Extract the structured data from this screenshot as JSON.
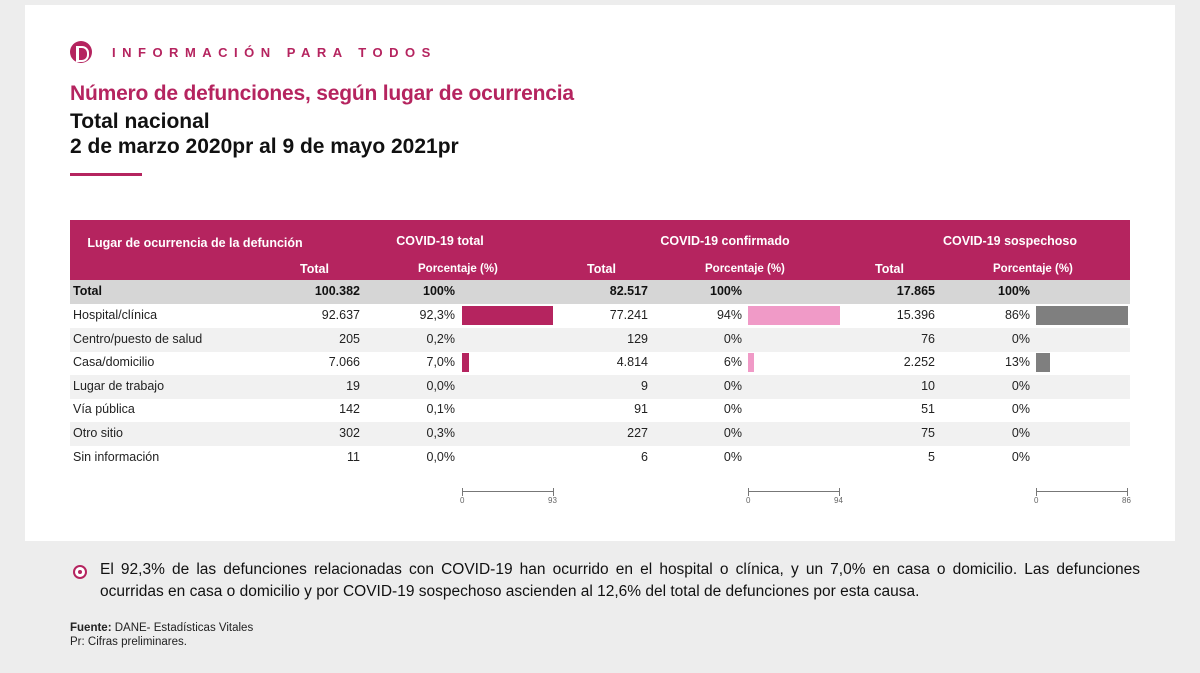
{
  "brand": "INFORMACIÓN PARA TODOS",
  "title": "Número de defunciones, según lugar de ocurrencia",
  "subtitle1": "Total nacional",
  "subtitle2": "2 de marzo 2020pr al 9 de mayo 2021pr",
  "colors": {
    "accent": "#b5245f",
    "confirmed": "#f09ac7",
    "suspected": "#7f7f7f"
  },
  "table": {
    "col_place": "Lugar de ocurrencia de la defunción",
    "groups": [
      "COVID-19 total",
      "COVID-19 confirmado",
      "COVID-19 sospechoso"
    ],
    "sub_total": "Total",
    "sub_pct": "Porcentaje (%)",
    "total_row": {
      "label": "Total",
      "vals": [
        "100.382",
        "100%",
        "82.517",
        "100%",
        "17.865",
        "100%"
      ]
    },
    "rows": [
      {
        "label": "Hospital/clínica",
        "vals": [
          "92.637",
          "92,3%",
          "77.241",
          "94%",
          "15.396",
          "86%"
        ],
        "bars": [
          92.3,
          94,
          86
        ]
      },
      {
        "label": "Centro/puesto de salud",
        "vals": [
          "205",
          "0,2%",
          "129",
          "0%",
          "76",
          "0%"
        ],
        "bars": [
          0.2,
          0,
          0
        ]
      },
      {
        "label": "Casa/domicilio",
        "vals": [
          "7.066",
          "7,0%",
          "4.814",
          "6%",
          "2.252",
          "13%"
        ],
        "bars": [
          7.0,
          6,
          13
        ]
      },
      {
        "label": "Lugar de trabajo",
        "vals": [
          "19",
          "0,0%",
          "9",
          "0%",
          "10",
          "0%"
        ],
        "bars": [
          0,
          0,
          0
        ]
      },
      {
        "label": "Vía pública",
        "vals": [
          "142",
          "0,1%",
          "91",
          "0%",
          "51",
          "0%"
        ],
        "bars": [
          0.1,
          0,
          0
        ]
      },
      {
        "label": "Otro sitio",
        "vals": [
          "302",
          "0,3%",
          "227",
          "0%",
          "75",
          "0%"
        ],
        "bars": [
          0.3,
          0,
          0
        ]
      },
      {
        "label": "Sin información",
        "vals": [
          "11",
          "0,0%",
          "6",
          "0%",
          "5",
          "0%"
        ],
        "bars": [
          0,
          0,
          0
        ]
      }
    ],
    "axes": [
      {
        "min": "0",
        "max": "93"
      },
      {
        "min": "0",
        "max": "94"
      },
      {
        "min": "0",
        "max": "86"
      }
    ]
  },
  "note": "El 92,3% de las defunciones relacionadas con COVID-19 han ocurrido en el hospital o clínica, y un 7,0% en casa o domicilio. Las defunciones ocurridas en casa o domicilio y por COVID-19 sospechoso ascienden al 12,6% del total de defunciones por esta causa.",
  "source_label": "Fuente:",
  "source_text": " DANE- Estadísticas Vitales",
  "prelim": "Pr: Cifras preliminares."
}
